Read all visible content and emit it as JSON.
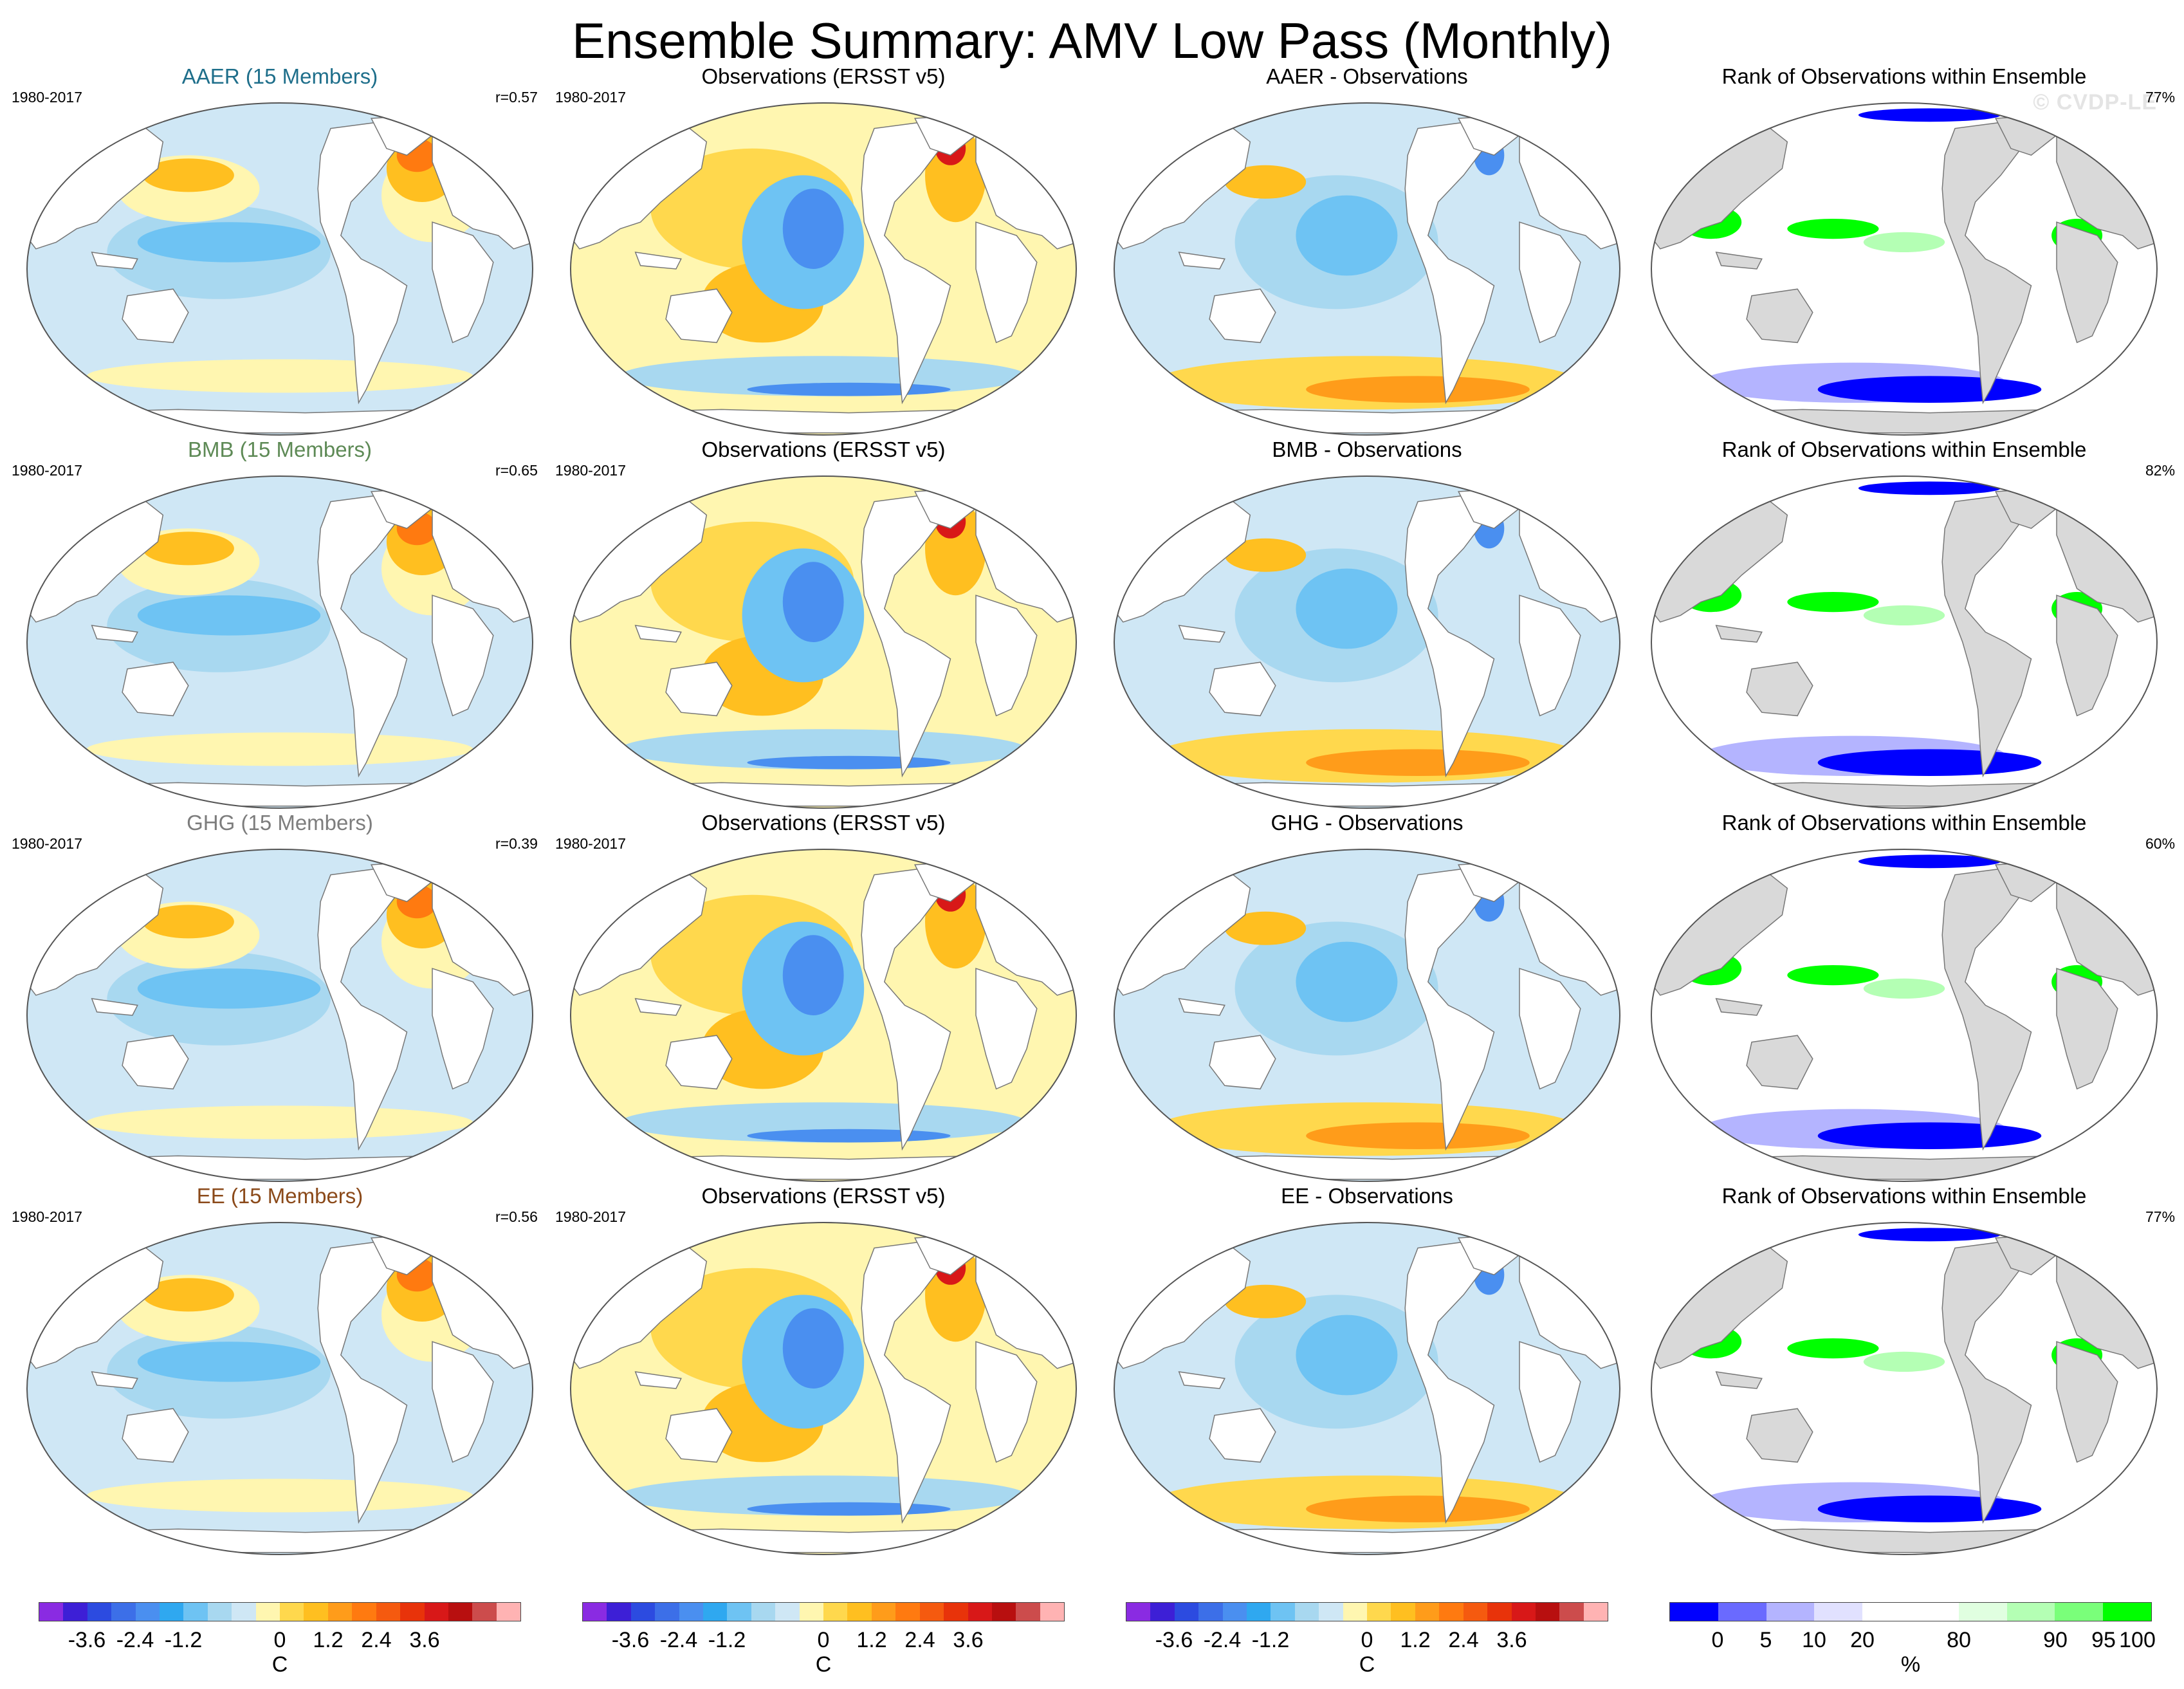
{
  "title": "Ensemble Summary: AMV Low Pass (Monthly)",
  "watermark": "© CVDP-LE",
  "colors": {
    "aaer": "#1f6f8b",
    "bmb": "#5e8a56",
    "ghg": "#7d7d7d",
    "ee": "#8b4a1a",
    "land": "#d9d9d9",
    "ocean_white": "#ffffff"
  },
  "rows": [
    {
      "model": {
        "title": "AAER (15 Members)",
        "color_key": "aaer",
        "period": "1980-2017",
        "corr": "r=0.57"
      },
      "obs": {
        "title": "Observations (ERSST v5)",
        "period": "1980-2017"
      },
      "diff": {
        "title": "AAER - Observations"
      },
      "rank": {
        "title": "Rank of Observations within Ensemble",
        "pct": "77%"
      }
    },
    {
      "model": {
        "title": "BMB (15 Members)",
        "color_key": "bmb",
        "period": "1980-2017",
        "corr": "r=0.65"
      },
      "obs": {
        "title": "Observations (ERSST v5)",
        "period": "1980-2017"
      },
      "diff": {
        "title": "BMB - Observations"
      },
      "rank": {
        "title": "Rank of Observations within Ensemble",
        "pct": "82%"
      }
    },
    {
      "model": {
        "title": "GHG (15 Members)",
        "color_key": "ghg",
        "period": "1980-2017",
        "corr": "r=0.39"
      },
      "obs": {
        "title": "Observations (ERSST v5)",
        "period": "1980-2017"
      },
      "diff": {
        "title": "GHG - Observations"
      },
      "rank": {
        "title": "Rank of Observations within Ensemble",
        "pct": "60%"
      }
    },
    {
      "model": {
        "title": "EE (15 Members)",
        "color_key": "ee",
        "period": "1980-2017",
        "corr": "r=0.56"
      },
      "obs": {
        "title": "Observations (ERSST v5)",
        "period": "1980-2017"
      },
      "diff": {
        "title": "EE - Observations"
      },
      "rank": {
        "title": "Rank of Observations within Ensemble",
        "pct": "77%"
      }
    }
  ],
  "temp_colorbar": {
    "colors": [
      "#8a2be2",
      "#3d1fd6",
      "#2c4be0",
      "#3c6fe8",
      "#4a8ff0",
      "#2fa8f0",
      "#6ec3f3",
      "#a8d8f0",
      "#cfe7f5",
      "#fff6b0",
      "#ffd84d",
      "#ffbf20",
      "#ff9c1a",
      "#ff7a10",
      "#f55a0f",
      "#e8330a",
      "#d81818",
      "#b80f0f",
      "#cc4c4c",
      "#ffb3b3"
    ],
    "ticks": [
      "-3.6",
      "-2.4",
      "-1.2",
      "0",
      "1.2",
      "2.4",
      "3.6"
    ],
    "unit": "C"
  },
  "rank_colorbar": {
    "colors": [
      "#0000ff",
      "#6a6aff",
      "#b4b4ff",
      "#e1e1ff",
      "#ffffff",
      "#ffffff",
      "#e0ffe0",
      "#b4ffb4",
      "#7aff7a",
      "#00ff00"
    ],
    "ticks": [
      "0",
      "5",
      "10",
      "20",
      "80",
      "90",
      "95",
      "100"
    ],
    "unit": "%"
  }
}
